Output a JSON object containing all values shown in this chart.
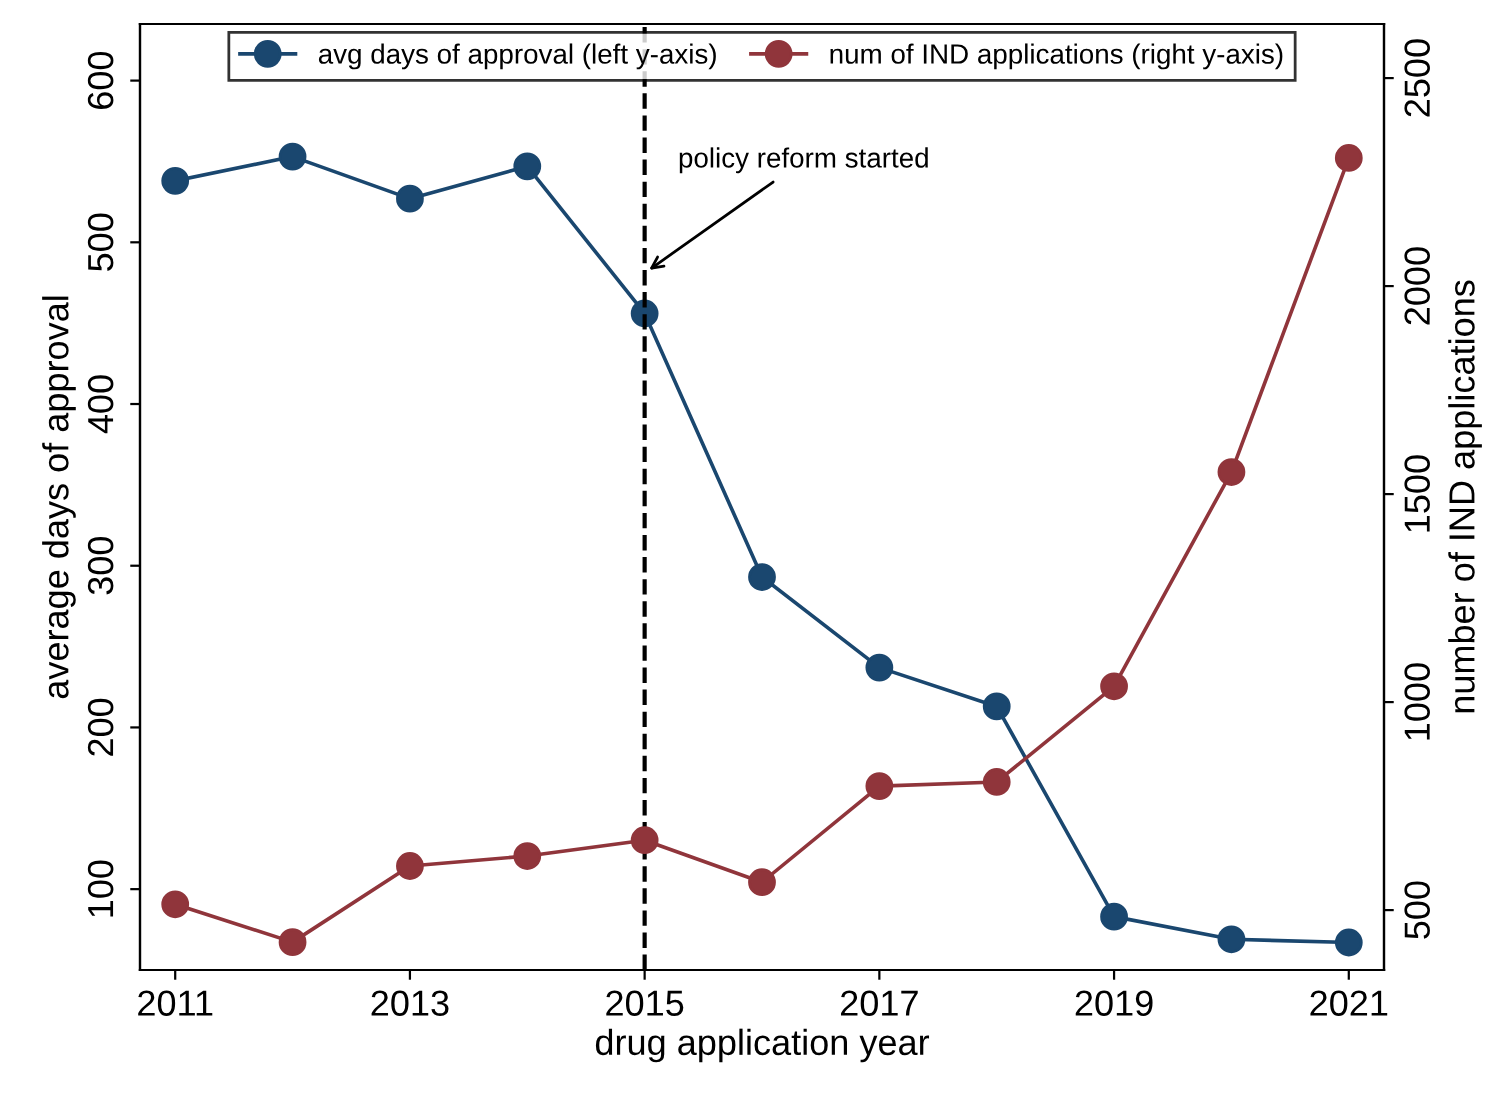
{
  "chart_data": {
    "type": "line",
    "xlabel": "drug application year",
    "ylabel": "average days of approval",
    "y2label": "number of IND applications",
    "x": [
      2011,
      2012,
      2013,
      2014,
      2015,
      2016,
      2017,
      2018,
      2019,
      2020,
      2021
    ],
    "series": [
      {
        "name": "avg days of approval (left y-axis)",
        "color": "#1a476f",
        "values": [
          538,
          553,
          527,
          547,
          456,
          293,
          237,
          213,
          83,
          69,
          67
        ]
      },
      {
        "name": "num of IND applications (right y-axis)",
        "color": "#90353b",
        "axis": "y2",
        "values": [
          514,
          423,
          606,
          630,
          668,
          567,
          798,
          808,
          1038,
          1553,
          2308
        ]
      }
    ],
    "xlim": [
      2010.7,
      2021.3
    ],
    "xticks": [
      2011,
      2013,
      2015,
      2017,
      2019,
      2021
    ],
    "ylim": [
      50,
      635
    ],
    "yticks": [
      100,
      200,
      300,
      400,
      500,
      600
    ],
    "y2lim": [
      356,
      2630
    ],
    "y2ticks": [
      500,
      1000,
      1500,
      2000,
      2500
    ],
    "ref_lines": [
      {
        "axis": "x",
        "value": 2015,
        "color": "#000000",
        "line_style": "dashed"
      }
    ],
    "annotations": [
      {
        "text": "policy reform started",
        "x": 2015,
        "y": 481
      }
    ],
    "marker": "circle",
    "grid": false,
    "legend": "top"
  }
}
